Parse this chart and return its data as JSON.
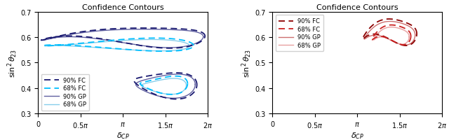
{
  "title": "Confidence Contours",
  "xlabel": "$\\delta_{CP}$",
  "ylabel": "$\\sin^2 \\theta_{23}$",
  "xlim": [
    0,
    6.2832
  ],
  "ylim": [
    0.3,
    0.7
  ],
  "xticks": [
    0,
    1.5708,
    3.1416,
    4.7124,
    6.2832
  ],
  "xticklabels": [
    "0",
    "$0.5\\pi$",
    "$\\pi$",
    "$1.5\\pi$",
    "$2\\pi$"
  ],
  "yticks": [
    0.3,
    0.4,
    0.5,
    0.6,
    0.7
  ],
  "left_colors": {
    "fc_90": "#191970",
    "fc_68": "#00BFFF",
    "gp_90": "#6060A0",
    "gp_68": "#87CEEB"
  },
  "right_colors": {
    "fc_90": "#8B0000",
    "fc_68": "#CC2222",
    "gp_90": "#CD7070",
    "gp_68": "#E8A0A0"
  },
  "legend_labels_left": [
    "90% FC",
    "68% FC",
    "90% GP",
    "68% GP"
  ],
  "legend_labels_right": [
    "90% FC",
    "68% FC",
    "90% GP",
    "68% GP"
  ]
}
